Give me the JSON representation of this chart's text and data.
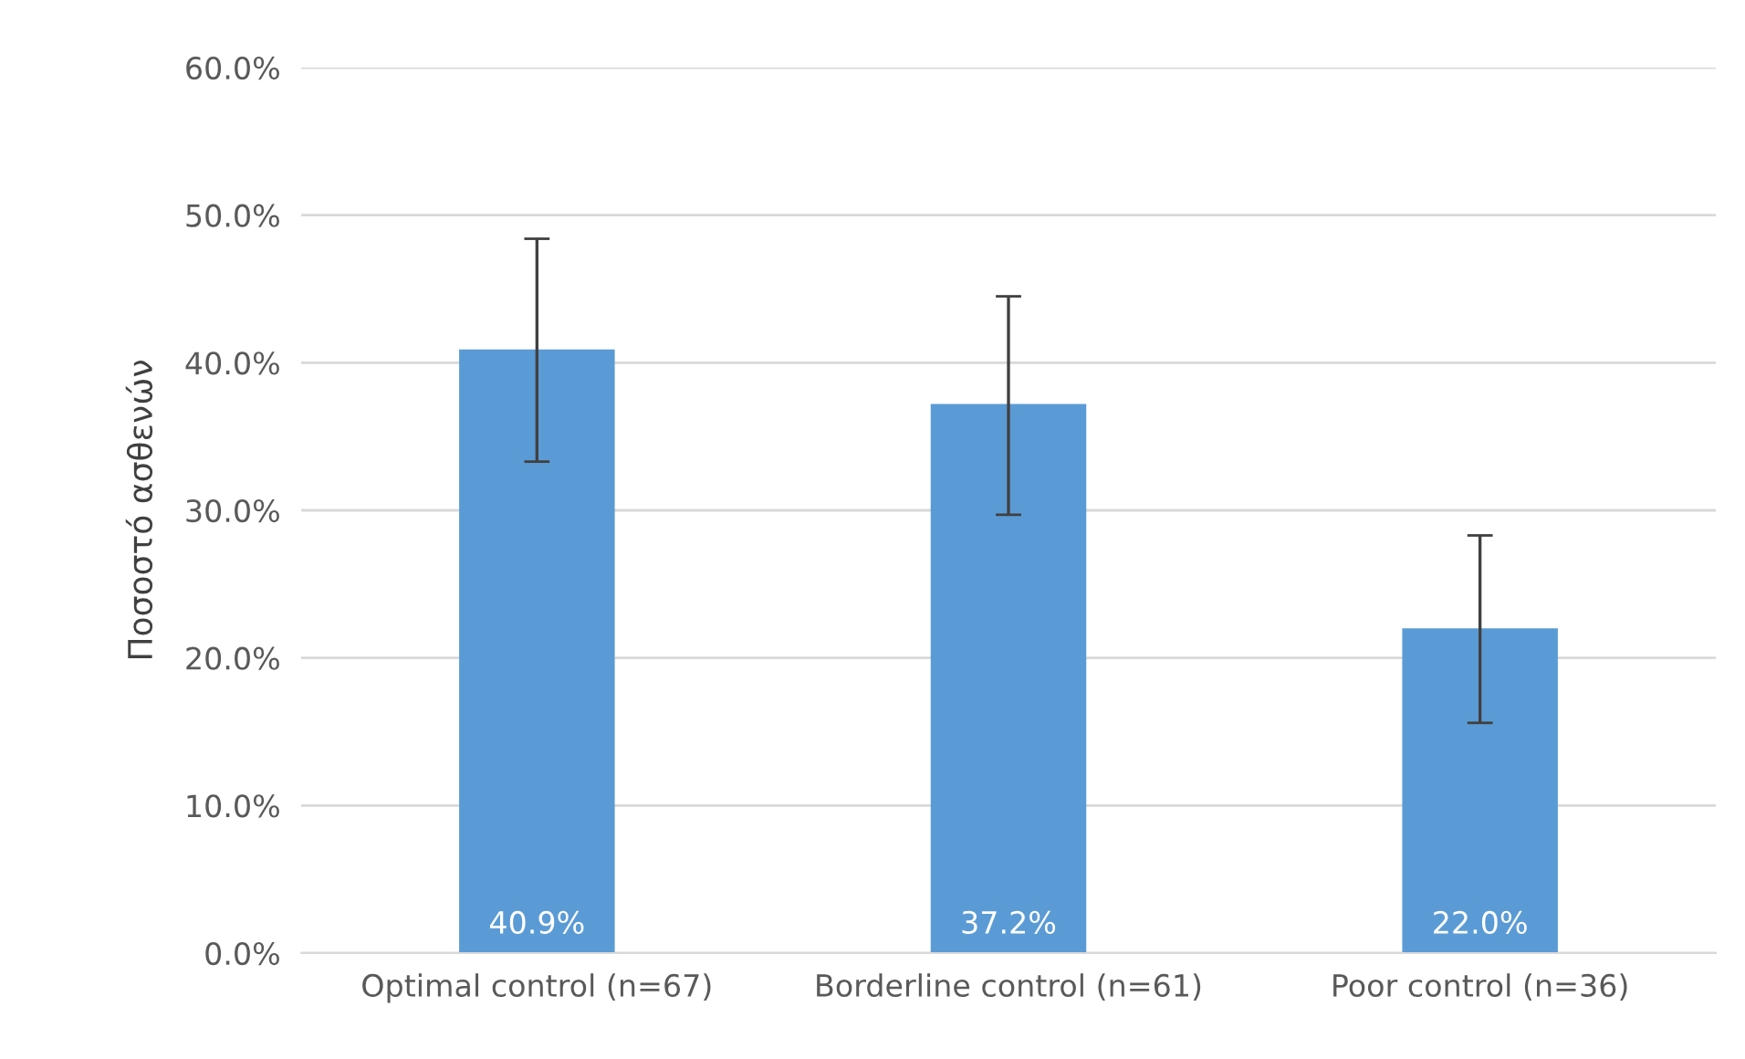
{
  "chart_data": {
    "type": "bar",
    "ylabel": "Ποσοστό ασθενών",
    "categories": [
      "Optimal control (n=67)",
      "Borderline control (n=61)",
      "Poor control (n=36)"
    ],
    "values": [
      40.9,
      37.2,
      22.0
    ],
    "value_labels": [
      "40.9%",
      "37.2%",
      "22.0%"
    ],
    "errors": [
      [
        33.3,
        48.4
      ],
      [
        29.7,
        44.5
      ],
      [
        15.6,
        28.3
      ]
    ],
    "color": "#5b9bd5",
    "ylim": [
      0,
      60
    ],
    "yticks": [
      {
        "value": 0,
        "label": "0.0%"
      },
      {
        "value": 10,
        "label": "10.0%"
      },
      {
        "value": 20,
        "label": "20.0%"
      },
      {
        "value": 30,
        "label": "30.0%"
      },
      {
        "value": 40,
        "label": "40.0%"
      },
      {
        "value": 50,
        "label": "50.0%"
      },
      {
        "value": 60,
        "label": "60.0%"
      }
    ],
    "grid": "y"
  }
}
